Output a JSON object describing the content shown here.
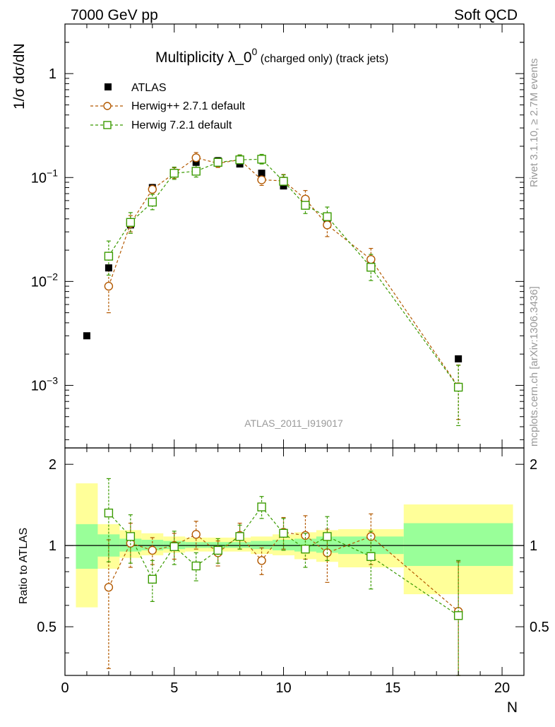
{
  "chart_data": {
    "type": "scatter",
    "header_left": "7000 GeV pp",
    "header_right": "Soft QCD",
    "title_main": "Multiplicity λ_0",
    "title_sup": "0",
    "title_small": " (charged only) (track jets)",
    "ylabel_top": "1/σ dσ/dN",
    "ylabel_bottom": "Ratio to ATLAS",
    "xlabel": "N",
    "side_text_top": "Rivet 3.1.10, ≥ 2.7M events",
    "side_text_bottom": "mcplots.cern.ch [arXiv:1306.3436]",
    "analysis_label": "ATLAS_2011_I919017",
    "xlim": [
      0,
      21
    ],
    "ylim_top": [
      0.00025,
      3.0
    ],
    "ylim_bottom": [
      0.33,
      2.3
    ],
    "xticks": [
      "0",
      "5",
      "10",
      "15",
      "20"
    ],
    "yticks_top": [
      {
        "value": 1,
        "base": "1",
        "exp": ""
      },
      {
        "value": 0.1,
        "base": "10",
        "exp": "−1"
      },
      {
        "value": 0.01,
        "base": "10",
        "exp": "−2"
      },
      {
        "value": 0.001,
        "base": "10",
        "exp": "−3"
      }
    ],
    "yticks_bottom": [
      "0.5",
      "1",
      "2"
    ],
    "legend": [
      {
        "label": "ATLAS",
        "color": "#000000",
        "marker": "square-filled"
      },
      {
        "label": "Herwig++ 2.7.1 default",
        "color": "#b35900",
        "marker": "circle-open"
      },
      {
        "label": "Herwig 7.2.1 default",
        "color": "#3a9a00",
        "marker": "square-open"
      }
    ],
    "atlas": {
      "x": [
        1,
        2,
        3,
        4,
        5,
        6,
        7,
        8,
        9,
        10,
        11,
        12,
        14,
        18
      ],
      "y": [
        0.003,
        0.0135,
        0.035,
        0.08,
        0.11,
        0.14,
        0.145,
        0.135,
        0.11,
        0.083,
        0.057,
        0.037,
        0.0152,
        0.0018
      ]
    },
    "atlas_bands": [
      {
        "x": [
          0.5,
          1.5
        ],
        "inner": [
          0.82,
          1.2
        ],
        "outer": [
          0.59,
          1.7
        ]
      },
      {
        "x": [
          1.5,
          2.5
        ],
        "inner": [
          0.91,
          1.1
        ],
        "outer": [
          0.82,
          1.2
        ]
      },
      {
        "x": [
          2.5,
          3.5
        ],
        "inner": [
          0.95,
          1.06
        ],
        "outer": [
          0.9,
          1.14
        ]
      },
      {
        "x": [
          3.5,
          4.5
        ],
        "inner": [
          0.96,
          1.05
        ],
        "outer": [
          0.92,
          1.11
        ]
      },
      {
        "x": [
          4.5,
          5.5
        ],
        "inner": [
          0.97,
          1.04
        ],
        "outer": [
          0.94,
          1.08
        ]
      },
      {
        "x": [
          5.5,
          6.5
        ],
        "inner": [
          0.98,
          1.03
        ],
        "outer": [
          0.95,
          1.07
        ]
      },
      {
        "x": [
          6.5,
          7.5
        ],
        "inner": [
          0.98,
          1.03
        ],
        "outer": [
          0.95,
          1.07
        ]
      },
      {
        "x": [
          7.5,
          8.5
        ],
        "inner": [
          0.98,
          1.03
        ],
        "outer": [
          0.95,
          1.07
        ]
      },
      {
        "x": [
          8.5,
          9.5
        ],
        "inner": [
          0.97,
          1.04
        ],
        "outer": [
          0.93,
          1.08
        ]
      },
      {
        "x": [
          9.5,
          10.5
        ],
        "inner": [
          0.96,
          1.05
        ],
        "outer": [
          0.92,
          1.1
        ]
      },
      {
        "x": [
          10.5,
          11.5
        ],
        "inner": [
          0.95,
          1.06
        ],
        "outer": [
          0.89,
          1.12
        ]
      },
      {
        "x": [
          11.5,
          12.5
        ],
        "inner": [
          0.94,
          1.08
        ],
        "outer": [
          0.87,
          1.14
        ]
      },
      {
        "x": [
          12.5,
          15.5
        ],
        "inner": [
          0.93,
          1.08
        ],
        "outer": [
          0.83,
          1.15
        ]
      },
      {
        "x": [
          15.5,
          20.5
        ],
        "inner": [
          0.84,
          1.21
        ],
        "outer": [
          0.66,
          1.42
        ]
      }
    ],
    "series": [
      {
        "name": "Herwig++ 2.7.1 default",
        "color": "#b35900",
        "marker": "circle-open",
        "x": [
          2,
          3,
          4,
          5,
          6,
          7,
          8,
          9,
          10,
          11,
          12,
          14,
          18
        ],
        "y": [
          0.009,
          0.036,
          0.077,
          0.11,
          0.155,
          0.137,
          0.148,
          0.095,
          0.093,
          0.062,
          0.035,
          0.0163,
          0.00097
        ],
        "err_lo": [
          0.004,
          0.006,
          0.008,
          0.012,
          0.016,
          0.012,
          0.014,
          0.011,
          0.012,
          0.011,
          0.008,
          0.0035,
          0.0005
        ],
        "err_hi": [
          0.005,
          0.007,
          0.009,
          0.014,
          0.019,
          0.014,
          0.017,
          0.013,
          0.014,
          0.013,
          0.01,
          0.0045,
          0.0006
        ],
        "ratio": [
          0.7,
          1.02,
          0.96,
          1.0,
          1.1,
          0.94,
          1.09,
          0.88,
          1.12,
          1.09,
          0.94,
          1.08,
          0.57
        ],
        "ratio_err": [
          0.35,
          0.19,
          0.11,
          0.11,
          0.13,
          0.1,
          0.12,
          0.1,
          0.15,
          0.2,
          0.21,
          0.23,
          0.3
        ]
      },
      {
        "name": "Herwig 7.2.1 default",
        "color": "#3a9a00",
        "marker": "square-open",
        "x": [
          2,
          3,
          4,
          5,
          6,
          7,
          8,
          9,
          10,
          11,
          12,
          14,
          18
        ],
        "y": [
          0.0175,
          0.037,
          0.058,
          0.11,
          0.115,
          0.14,
          0.148,
          0.15,
          0.092,
          0.054,
          0.042,
          0.0137,
          0.00096
        ],
        "err_lo": [
          0.006,
          0.008,
          0.009,
          0.014,
          0.014,
          0.014,
          0.015,
          0.015,
          0.012,
          0.009,
          0.009,
          0.0035,
          0.00055
        ],
        "err_hi": [
          0.007,
          0.009,
          0.011,
          0.016,
          0.016,
          0.016,
          0.017,
          0.017,
          0.014,
          0.011,
          0.01,
          0.0045,
          0.0006
        ],
        "ratio": [
          1.32,
          1.08,
          0.75,
          0.99,
          0.84,
          0.96,
          1.08,
          1.39,
          1.11,
          0.97,
          1.08,
          0.91,
          0.55
        ],
        "ratio_err": [
          0.45,
          0.22,
          0.13,
          0.14,
          0.1,
          0.1,
          0.11,
          0.13,
          0.15,
          0.14,
          0.2,
          0.22,
          0.33
        ]
      }
    ]
  }
}
